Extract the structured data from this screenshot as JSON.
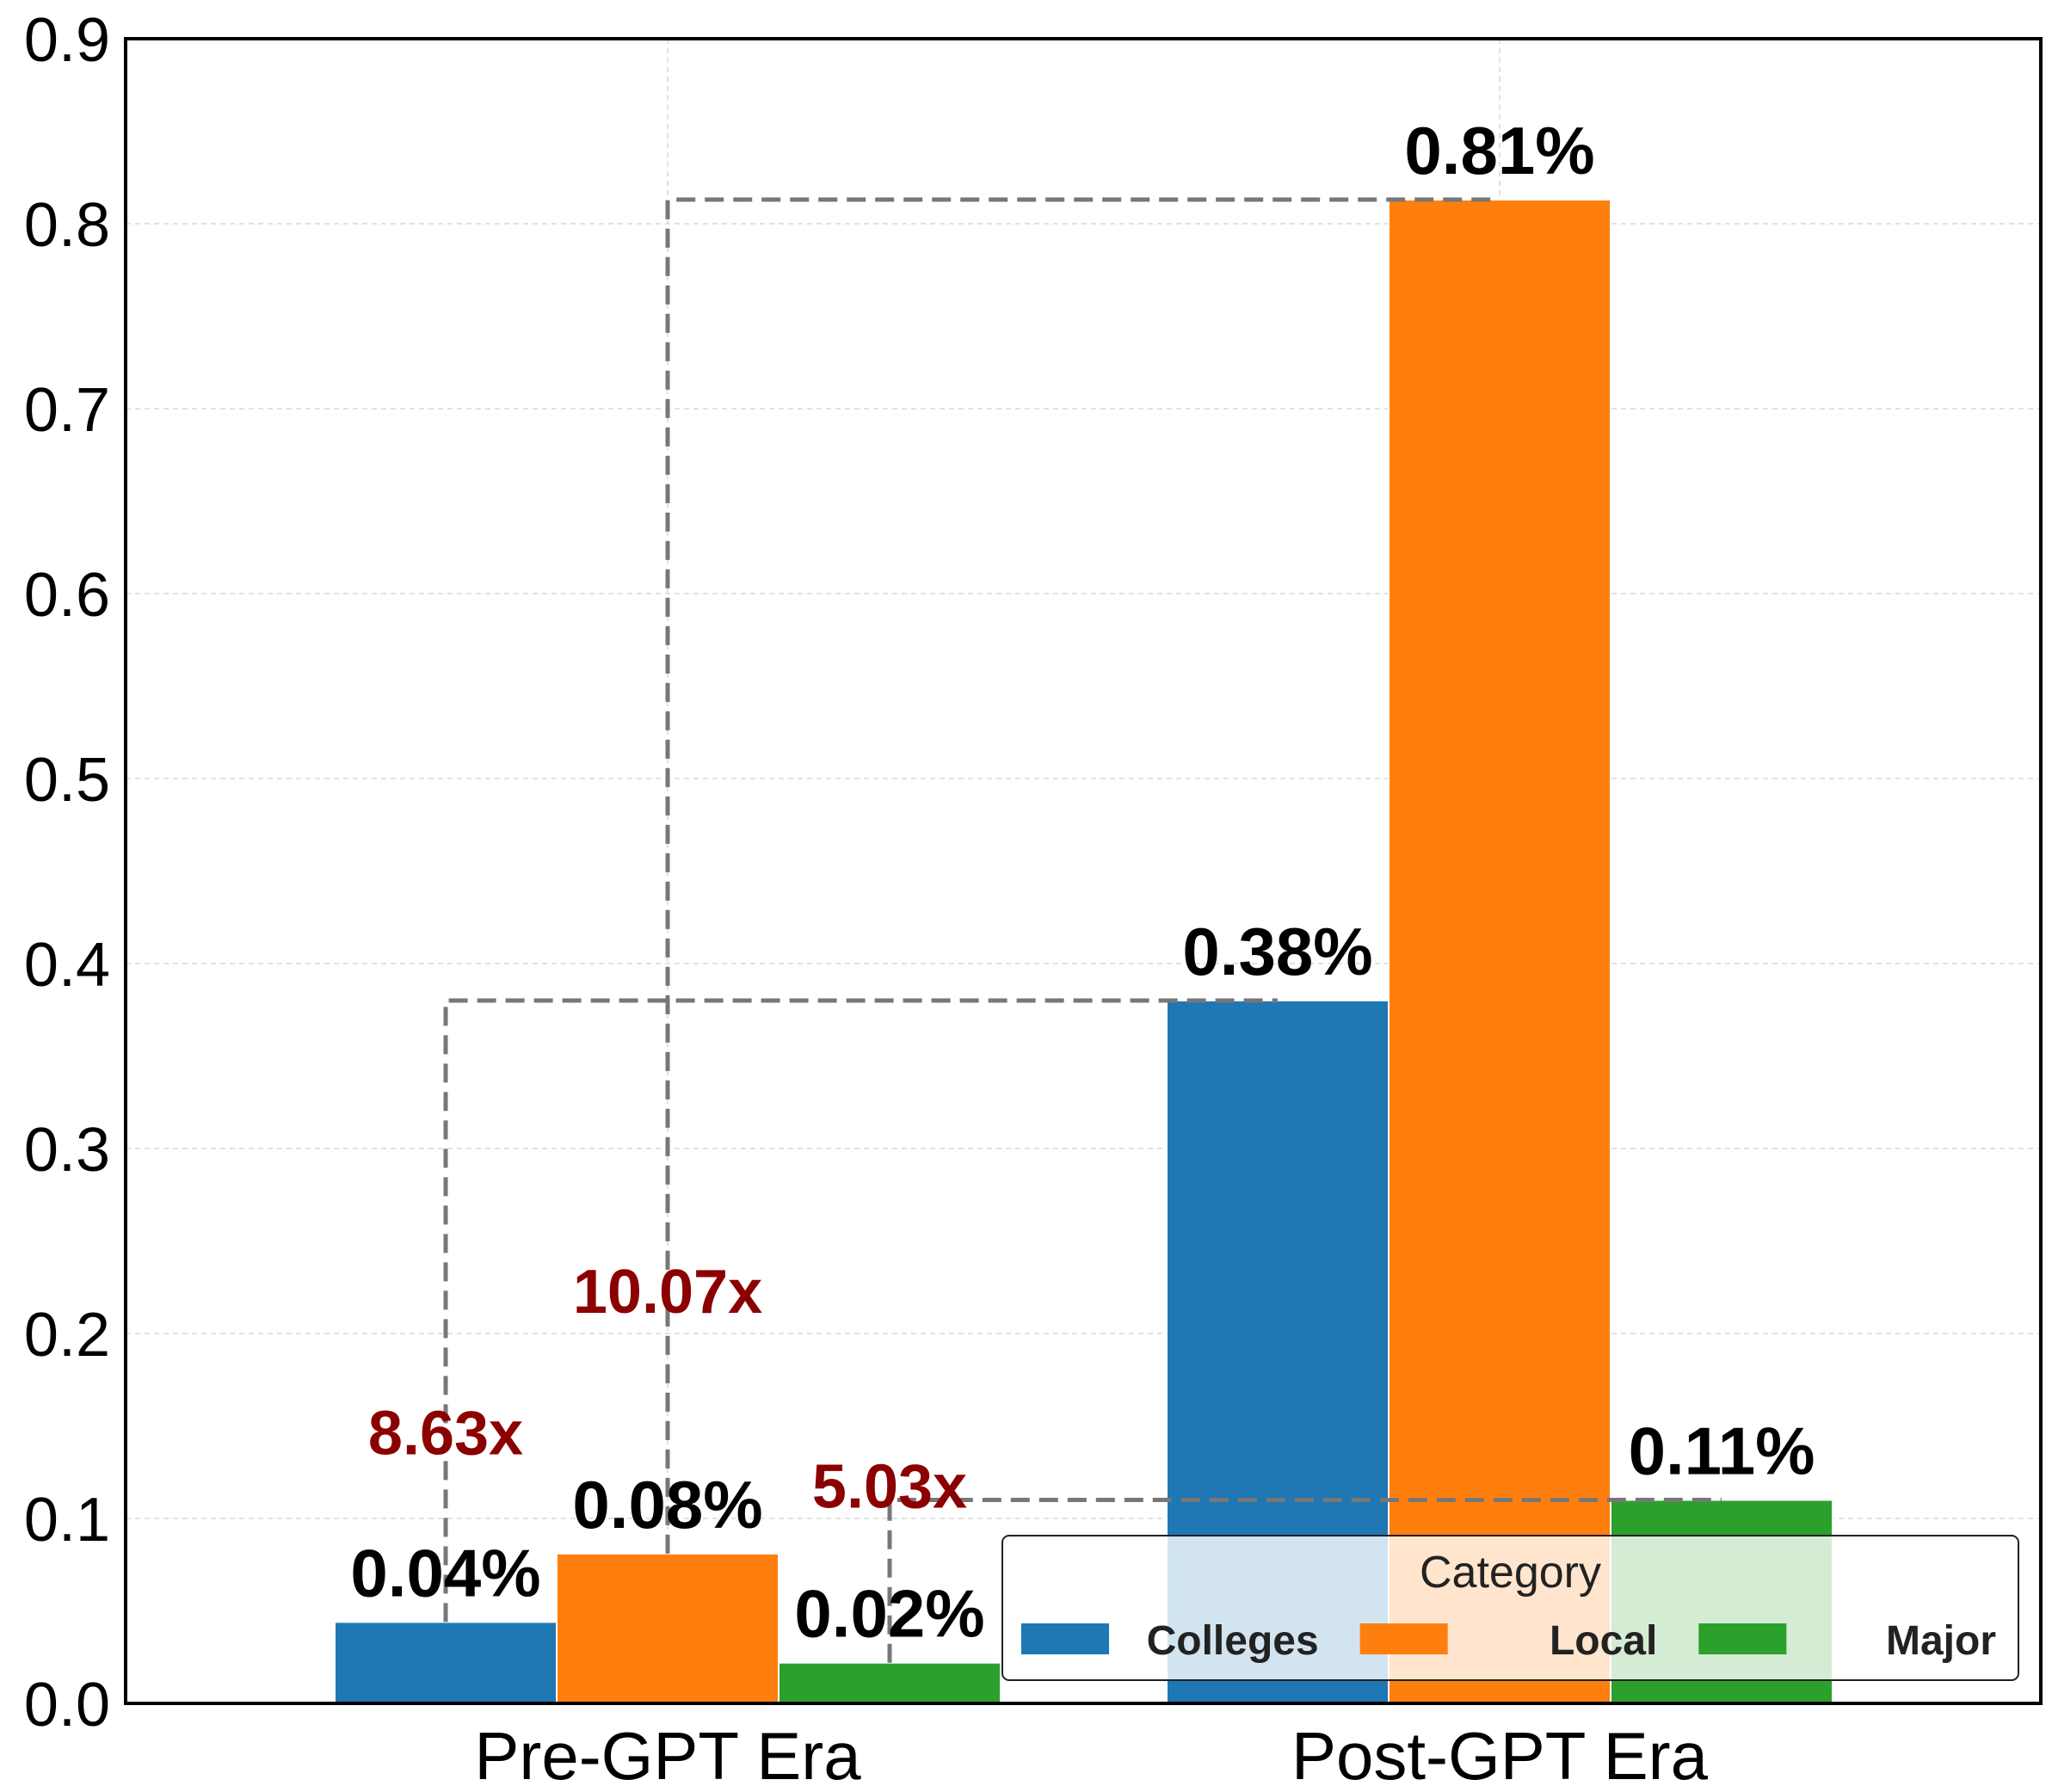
{
  "chart_data": {
    "type": "bar",
    "categories": [
      "Pre-GPT Era",
      "Post-GPT Era"
    ],
    "series": [
      {
        "name": "Colleges",
        "color": "#1f77b4",
        "values": [
          0.044,
          0.38
        ],
        "labels": [
          "0.04%",
          "0.38%"
        ]
      },
      {
        "name": "Local",
        "color": "#ff7f0e",
        "values": [
          0.081,
          0.813
        ],
        "labels": [
          "0.08%",
          "0.81%"
        ]
      },
      {
        "name": "Major",
        "color": "#2ca02c",
        "values": [
          0.022,
          0.11
        ],
        "labels": [
          "0.02%",
          "0.11%"
        ]
      }
    ],
    "ratios": [
      {
        "series": "Colleges",
        "label": "8.63x"
      },
      {
        "series": "Local",
        "label": "10.07x"
      },
      {
        "series": "Major",
        "label": "5.03x"
      }
    ],
    "yticks": [
      "0.0",
      "0.1",
      "0.2",
      "0.3",
      "0.4",
      "0.5",
      "0.6",
      "0.7",
      "0.8",
      "0.9"
    ],
    "ylim": [
      0,
      0.9
    ],
    "grid": true,
    "legend": {
      "title": "Category",
      "placement": "lower-right"
    },
    "annotation_color": "#8b0000",
    "connector_color": "#777777"
  }
}
